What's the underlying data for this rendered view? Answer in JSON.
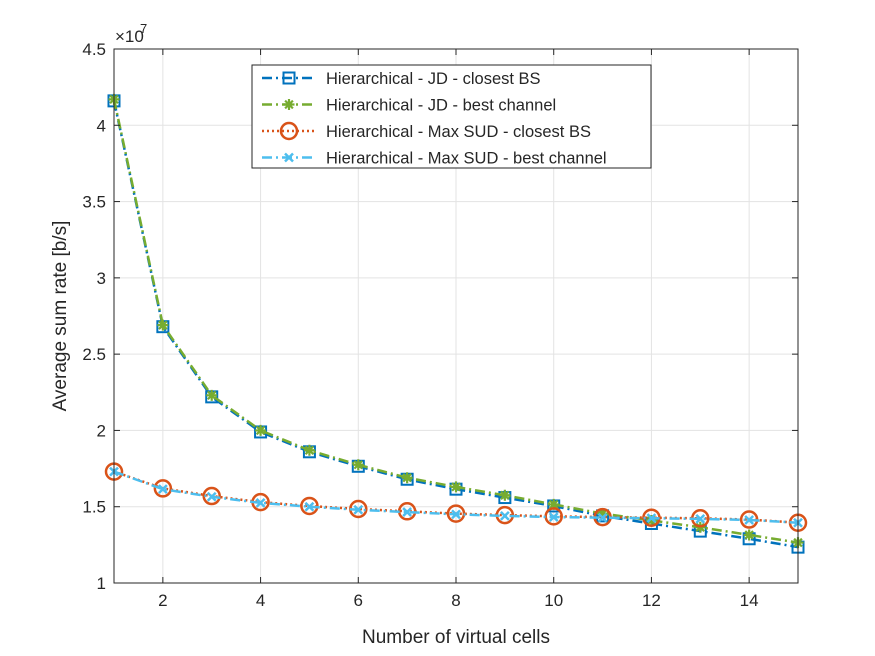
{
  "chart_data": {
    "type": "line",
    "title": "",
    "xlabel": "Number of virtual cells",
    "ylabel": "Average sum rate [b/s]",
    "y_exponent_base": "×10",
    "y_exponent_power": "7",
    "xlim": [
      1,
      15
    ],
    "ylim": [
      1,
      4.5
    ],
    "xticks": [
      2,
      4,
      6,
      8,
      10,
      12,
      14
    ],
    "xtick_labels": [
      "2",
      "4",
      "6",
      "8",
      "10",
      "12",
      "14"
    ],
    "yticks": [
      1,
      1.5,
      2,
      2.5,
      3,
      3.5,
      4,
      4.5
    ],
    "ytick_labels": [
      "1",
      "1.5",
      "2",
      "2.5",
      "3",
      "3.5",
      "4",
      "4.5"
    ],
    "grid": true,
    "legend_position": "top-center",
    "x": [
      1,
      2,
      3,
      4,
      5,
      6,
      7,
      8,
      9,
      10,
      11,
      12,
      13,
      14,
      15
    ],
    "series": [
      {
        "name": "Hierarchical - JD - closest BS",
        "color": "#0072BD",
        "line_style": "dashdot",
        "marker": "square",
        "values": [
          4.16,
          2.68,
          2.22,
          1.99,
          1.86,
          1.765,
          1.68,
          1.615,
          1.56,
          1.505,
          1.44,
          1.39,
          1.34,
          1.29,
          1.235
        ]
      },
      {
        "name": "Hierarchical - JD - best channel",
        "color": "#77AC30",
        "line_style": "dashdot",
        "marker": "asterisk",
        "values": [
          4.17,
          2.69,
          2.23,
          2.0,
          1.87,
          1.775,
          1.69,
          1.63,
          1.575,
          1.515,
          1.455,
          1.41,
          1.365,
          1.315,
          1.265
        ]
      },
      {
        "name": "Hierarchical - Max SUD - closest BS",
        "color": "#D95319",
        "line_style": "dotted",
        "marker": "circle",
        "values": [
          1.73,
          1.62,
          1.57,
          1.53,
          1.505,
          1.485,
          1.47,
          1.455,
          1.445,
          1.437,
          1.432,
          1.428,
          1.424,
          1.416,
          1.395
        ]
      },
      {
        "name": "Hierarchical - Max SUD - best channel",
        "color": "#4DBEEE",
        "line_style": "dashdot",
        "marker": "x",
        "values": [
          1.73,
          1.615,
          1.565,
          1.525,
          1.5,
          1.48,
          1.465,
          1.45,
          1.44,
          1.432,
          1.428,
          1.425,
          1.42,
          1.413,
          1.395
        ]
      }
    ]
  }
}
